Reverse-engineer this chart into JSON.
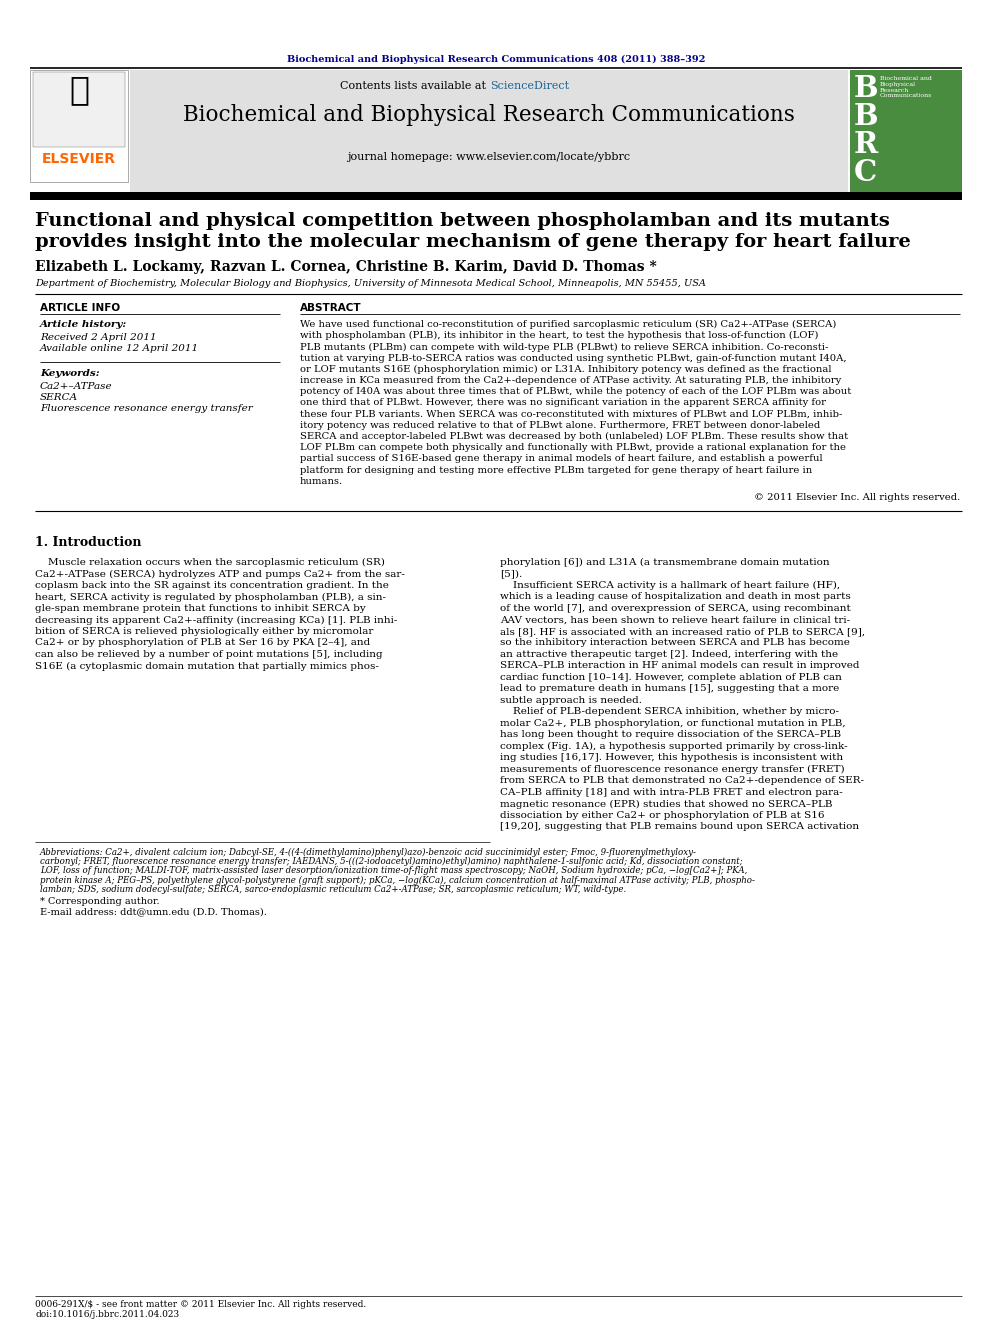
{
  "bg_color": "#ffffff",
  "header_journal_text": "Biochemical and Biophysical Research Communications 408 (2011) 388–392",
  "header_journal_color": "#00008B",
  "journal_name": "Biochemical and Biophysical Research Communications",
  "journal_homepage": "journal homepage: www.elsevier.com/locate/ybbrc",
  "contents_text": "Contents lists available at ",
  "science_direct_text": "ScienceDirect",
  "science_direct_color": "#1a6496",
  "elsevier_color": "#FF6600",
  "header_bg": "#e0e0e0",
  "bbrc_green": "#4a8c3f",
  "paper_title_line1": "Functional and physical competition between phospholamban and its mutants",
  "paper_title_line2": "provides insight into the molecular mechanism of gene therapy for heart failure",
  "authors": "Elizabeth L. Lockamy, Razvan L. Cornea, Christine B. Karim, David D. Thomas *",
  "affiliation": "Department of Biochemistry, Molecular Biology and Biophysics, University of Minnesota Medical School, Minneapolis, MN 55455, USA",
  "article_info_header": "ARTICLE INFO",
  "abstract_header": "ABSTRACT",
  "article_history_label": "Article history:",
  "received_text": "Received 2 April 2011",
  "available_text": "Available online 12 April 2011",
  "keywords_label": "Keywords:",
  "keyword1": "Ca2+–ATPase",
  "keyword2": "SERCA",
  "keyword3": "Fluorescence resonance energy transfer",
  "copyright_text": "© 2011 Elsevier Inc. All rights reserved.",
  "intro_header": "1. Introduction",
  "corresponding_text": "* Corresponding author.",
  "email_text": "E-mail address: ddt@umn.edu (D.D. Thomas).",
  "footer_text1": "0006-291X/$ - see front matter © 2011 Elsevier Inc. All rights reserved.",
  "footer_text2": "doi:10.1016/j.bbrc.2011.04.023",
  "abstract_lines": [
    "We have used functional co-reconstitution of purified sarcoplasmic reticulum (SR) Ca2+-ATPase (SERCA)",
    "with phospholamban (PLB), its inhibitor in the heart, to test the hypothesis that loss-of-function (LOF)",
    "PLB mutants (PLBm) can compete with wild-type PLB (PLBwt) to relieve SERCA inhibition. Co-reconsti-",
    "tution at varying PLB-to-SERCA ratios was conducted using synthetic PLBwt, gain-of-function mutant I40A,",
    "or LOF mutants S16E (phosphorylation mimic) or L31A. Inhibitory potency was defined as the fractional",
    "increase in KCa measured from the Ca2+-dependence of ATPase activity. At saturating PLB, the inhibitory",
    "potency of I40A was about three times that of PLBwt, while the potency of each of the LOF PLBm was about",
    "one third that of PLBwt. However, there was no significant variation in the apparent SERCA affinity for",
    "these four PLB variants. When SERCA was co-reconstituted with mixtures of PLBwt and LOF PLBm, inhib-",
    "itory potency was reduced relative to that of PLBwt alone. Furthermore, FRET between donor-labeled",
    "SERCA and acceptor-labeled PLBwt was decreased by both (unlabeled) LOF PLBm. These results show that",
    "LOF PLBm can compete both physically and functionally with PLBwt, provide a rational explanation for the",
    "partial success of S16E-based gene therapy in animal models of heart failure, and establish a powerful",
    "platform for designing and testing more effective PLBm targeted for gene therapy of heart failure in",
    "humans."
  ],
  "intro_col1_lines": [
    "    Muscle relaxation occurs when the sarcoplasmic reticulum (SR)",
    "Ca2+-ATPase (SERCA) hydrolyzes ATP and pumps Ca2+ from the sar-",
    "coplasm back into the SR against its concentration gradient. In the",
    "heart, SERCA activity is regulated by phospholamban (PLB), a sin-",
    "gle-span membrane protein that functions to inhibit SERCA by",
    "decreasing its apparent Ca2+-affinity (increasing KCa) [1]. PLB inhi-",
    "bition of SERCA is relieved physiologically either by micromolar",
    "Ca2+ or by phosphorylation of PLB at Ser 16 by PKA [2–4], and",
    "can also be relieved by a number of point mutations [5], including",
    "S16E (a cytoplasmic domain mutation that partially mimics phos-"
  ],
  "intro_col2_lines": [
    "phorylation [6]) and L31A (a transmembrane domain mutation",
    "[5]).",
    "    Insufficient SERCA activity is a hallmark of heart failure (HF),",
    "which is a leading cause of hospitalization and death in most parts",
    "of the world [7], and overexpression of SERCA, using recombinant",
    "AAV vectors, has been shown to relieve heart failure in clinical tri-",
    "als [8]. HF is associated with an increased ratio of PLB to SERCA [9],",
    "so the inhibitory interaction between SERCA and PLB has become",
    "an attractive therapeutic target [2]. Indeed, interfering with the",
    "SERCA–PLB interaction in HF animal models can result in improved",
    "cardiac function [10–14]. However, complete ablation of PLB can",
    "lead to premature death in humans [15], suggesting that a more",
    "subtle approach is needed.",
    "    Relief of PLB-dependent SERCA inhibition, whether by micro-",
    "molar Ca2+, PLB phosphorylation, or functional mutation in PLB,",
    "has long been thought to require dissociation of the SERCA–PLB",
    "complex (Fig. 1A), a hypothesis supported primarily by cross-link-",
    "ing studies [16,17]. However, this hypothesis is inconsistent with",
    "measurements of fluorescence resonance energy transfer (FRET)",
    "from SERCA to PLB that demonstrated no Ca2+-dependence of SER-",
    "CA–PLB affinity [18] and with intra-PLB FRET and electron para-",
    "magnetic resonance (EPR) studies that showed no SERCA–PLB",
    "dissociation by either Ca2+ or phosphorylation of PLB at S16",
    "[19,20], suggesting that PLB remains bound upon SERCA activation"
  ],
  "abbr_lines": [
    "Abbreviations: Ca2+, divalent calcium ion; Dabcyl-SE, 4-((4-(dimethylamino)phenyl)azo)-benzoic acid succinimidyl ester; Fmoc, 9-fluorenylmethyloxy-",
    "carbonyl; FRET, fluorescence resonance energy transfer; IAEDANS, 5-(((2-iodoacetyl)amino)ethyl)amino) naphthalene-1-sulfonic acid; Kd, dissociation constant;",
    "LOF, loss of function; MALDI-TOF, matrix-assisted laser desorption/ionization time-of-flight mass spectroscopy; NaOH, Sodium hydroxide; pCa, −log[Ca2+]; PKA,",
    "protein kinase A; PEG–PS, polyethylene glycol-polystyrene (graft support); pKCa, −log(KCa), calcium concentration at half-maximal ATPase activity; PLB, phospho-",
    "lamban; SDS, sodium dodecyl-sulfate; SERCA, sarco-endoplasmic reticulum Ca2+-ATPase; SR, sarcoplasmic reticulum; WT, wild-type."
  ]
}
